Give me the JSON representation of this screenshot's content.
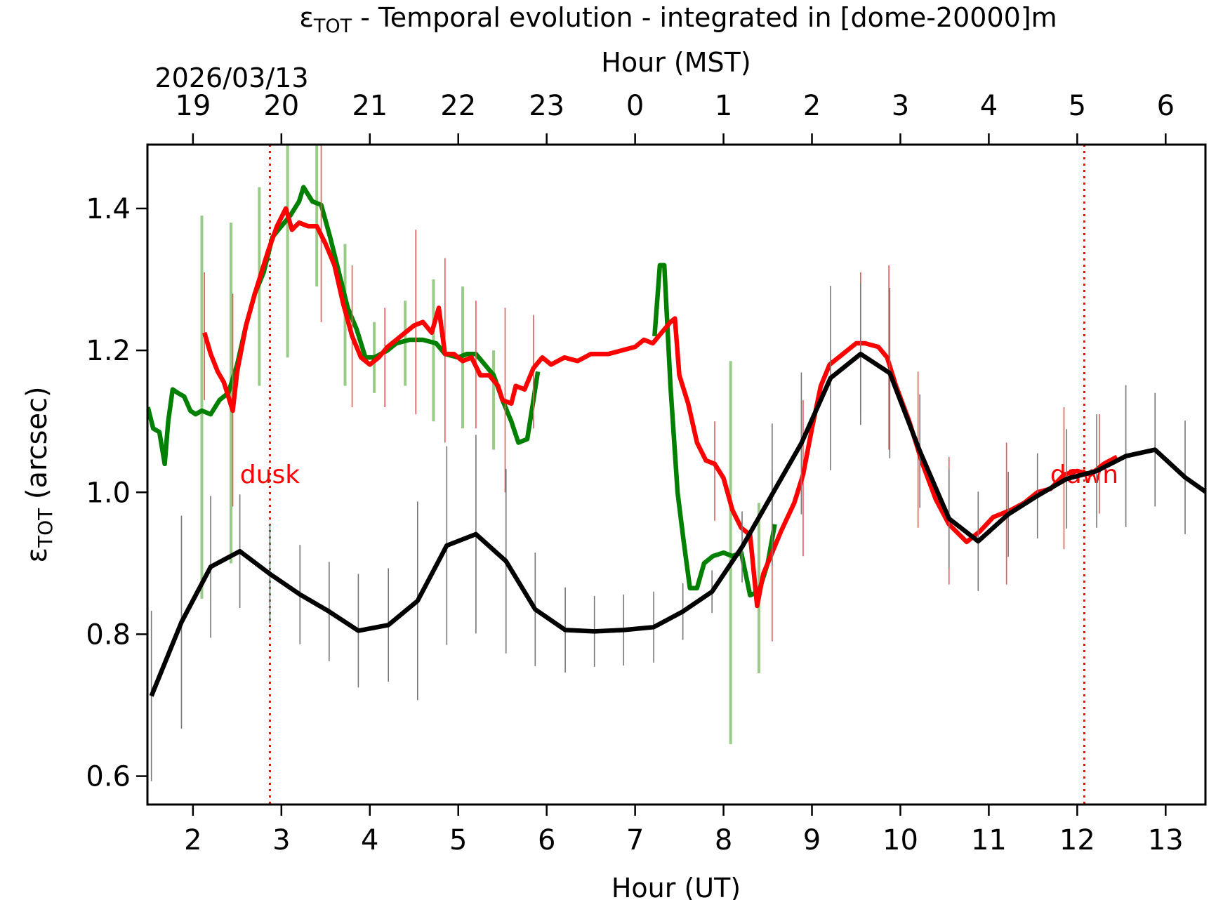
{
  "chart_data": {
    "type": "line",
    "title": {
      "symbol": "ε",
      "subscript": "TOT",
      "text": " - Temporal evolution - integrated in [dome-20000]m"
    },
    "ylabel": {
      "symbol": "ε",
      "subscript": "TOT",
      "text": " (arcsec)"
    },
    "xlabel": "Hour (UT)",
    "x2label": "Hour (MST)",
    "date_label": "2026/03/13",
    "xlim": [
      1.485,
      13.45
    ],
    "ylim": [
      0.56,
      1.49
    ],
    "xticks": [
      2,
      3,
      4,
      5,
      6,
      7,
      8,
      9,
      10,
      11,
      12,
      13
    ],
    "x2ticks": [
      {
        "value": 2,
        "label": "19"
      },
      {
        "value": 3,
        "label": "20"
      },
      {
        "value": 4,
        "label": "21"
      },
      {
        "value": 5,
        "label": "22"
      },
      {
        "value": 6,
        "label": "23"
      },
      {
        "value": 7,
        "label": "0"
      },
      {
        "value": 8,
        "label": "1"
      },
      {
        "value": 9,
        "label": "2"
      },
      {
        "value": 10,
        "label": "3"
      },
      {
        "value": 11,
        "label": "4"
      },
      {
        "value": 12,
        "label": "5"
      },
      {
        "value": 13,
        "label": "6"
      }
    ],
    "yticks": [
      0.6,
      0.8,
      {
        "value": 1,
        "label": "1.0"
      },
      1.2,
      1.4
    ],
    "annotations": [
      {
        "text": "dusk",
        "x": 2.87,
        "y": 1.025,
        "color": "#ff0000"
      },
      {
        "text": "dawn",
        "x": 12.08,
        "y": 1.025,
        "color": "#ff0000"
      }
    ],
    "series": [
      {
        "color": "#008000",
        "error_color": "#99cc88",
        "x": [
          1.49,
          1.55,
          1.62,
          1.68,
          1.72,
          1.77,
          1.83,
          1.9,
          1.97,
          2.03,
          2.1,
          2.2,
          2.3,
          2.4,
          2.5,
          2.6,
          2.7,
          2.8,
          2.9,
          3.0,
          3.1,
          3.2,
          3.25,
          3.35,
          3.45,
          3.55,
          3.65,
          3.75,
          3.85,
          3.95,
          4.05,
          4.2,
          4.3,
          4.45,
          4.6,
          4.75,
          4.85,
          5.0,
          5.1,
          5.2,
          5.3,
          5.4,
          5.5,
          5.6,
          5.68,
          5.78,
          5.85,
          5.9,
          null,
          7.22,
          7.28,
          7.33,
          7.4,
          7.48,
          7.55,
          7.62,
          7.7,
          7.78,
          7.88,
          8.0,
          8.1,
          8.2,
          8.3,
          8.4,
          8.5,
          8.58
        ],
        "values": [
          1.12,
          1.09,
          1.085,
          1.04,
          1.1,
          1.145,
          1.14,
          1.135,
          1.115,
          1.11,
          1.115,
          1.11,
          1.13,
          1.14,
          1.18,
          1.235,
          1.28,
          1.31,
          1.36,
          1.375,
          1.39,
          1.41,
          1.43,
          1.41,
          1.405,
          1.36,
          1.31,
          1.26,
          1.23,
          1.19,
          1.19,
          1.2,
          1.21,
          1.215,
          1.215,
          1.21,
          1.195,
          1.19,
          1.195,
          1.195,
          1.18,
          1.165,
          1.13,
          1.1,
          1.07,
          1.075,
          1.13,
          1.17,
          null,
          1.22,
          1.32,
          1.32,
          1.15,
          1.0,
          0.93,
          0.865,
          0.865,
          0.9,
          0.91,
          0.915,
          0.91,
          0.915,
          0.855,
          0.86,
          0.9,
          0.955
        ],
        "error_bars": {
          "x": [
            2.1,
            2.43,
            2.75,
            3.07,
            3.4,
            3.72,
            4.05,
            4.4,
            4.72,
            5.05,
            5.4,
            8.08,
            8.4
          ],
          "values": [
            1.12,
            1.14,
            1.29,
            1.39,
            1.41,
            1.25,
            1.19,
            1.21,
            1.2,
            1.19,
            1.13,
            0.915,
            0.865
          ],
          "errors": [
            0.27,
            0.24,
            0.14,
            0.2,
            0.12,
            0.1,
            0.05,
            0.06,
            0.1,
            0.1,
            0.07,
            0.27,
            0.12
          ]
        }
      },
      {
        "color": "#ff0000",
        "error_color": "#ee5555",
        "x": [
          2.13,
          2.2,
          2.28,
          2.35,
          2.45,
          2.5,
          2.6,
          2.7,
          2.85,
          2.95,
          3.05,
          3.12,
          3.2,
          3.3,
          3.4,
          3.5,
          3.6,
          3.7,
          3.8,
          3.9,
          4.0,
          4.1,
          4.2,
          4.3,
          4.4,
          4.5,
          4.6,
          4.7,
          4.78,
          4.85,
          4.95,
          5.05,
          5.15,
          5.25,
          5.35,
          5.45,
          5.5,
          5.6,
          5.65,
          5.75,
          5.85,
          5.95,
          6.05,
          6.2,
          6.35,
          6.5,
          6.7,
          6.85,
          7.0,
          7.1,
          7.2,
          7.3,
          7.4,
          7.45,
          7.5,
          7.6,
          7.7,
          7.8,
          7.9,
          8.0,
          8.1,
          8.2,
          8.3,
          8.38,
          8.45,
          8.55,
          8.65,
          8.8,
          8.9,
          9.0,
          9.1,
          9.2,
          9.35,
          9.5,
          9.6,
          9.75,
          9.85,
          9.95,
          10.1,
          10.25,
          10.4,
          10.55,
          10.75,
          10.9,
          11.05,
          11.25,
          11.4,
          11.55,
          11.7,
          11.85,
          12.0,
          12.15,
          12.3,
          12.45
        ],
        "values": [
          1.225,
          1.195,
          1.17,
          1.155,
          1.115,
          1.17,
          1.235,
          1.28,
          1.34,
          1.375,
          1.4,
          1.37,
          1.38,
          1.375,
          1.375,
          1.35,
          1.32,
          1.265,
          1.22,
          1.19,
          1.18,
          1.19,
          1.205,
          1.215,
          1.225,
          1.235,
          1.24,
          1.225,
          1.26,
          1.195,
          1.195,
          1.185,
          1.19,
          1.165,
          1.165,
          1.15,
          1.13,
          1.125,
          1.15,
          1.145,
          1.175,
          1.19,
          1.18,
          1.19,
          1.185,
          1.195,
          1.195,
          1.2,
          1.205,
          1.215,
          1.21,
          1.225,
          1.24,
          1.245,
          1.165,
          1.125,
          1.07,
          1.045,
          1.04,
          1.02,
          0.975,
          0.95,
          0.94,
          0.84,
          0.885,
          0.915,
          0.945,
          0.985,
          1.025,
          1.09,
          1.15,
          1.18,
          1.195,
          1.21,
          1.21,
          1.205,
          1.19,
          1.15,
          1.1,
          1.04,
          0.99,
          0.955,
          0.93,
          0.945,
          0.965,
          0.975,
          0.985,
          1.0,
          1.005,
          1.025,
          1.03,
          1.025,
          1.04,
          1.05
        ],
        "error_bars": {
          "x": [
            2.13,
            2.45,
            3.45,
            3.8,
            4.17,
            4.52,
            4.85,
            5.2,
            5.53,
            5.85,
            7.9,
            8.55,
            8.9,
            9.55,
            9.87,
            10.2,
            10.55,
            11.2,
            11.85,
            12.25
          ],
          "values": [
            1.22,
            1.13,
            1.37,
            1.22,
            1.19,
            1.24,
            1.2,
            1.18,
            1.13,
            1.17,
            1.03,
            0.91,
            1.02,
            1.21,
            1.19,
            1.06,
            0.96,
            0.97,
            1.02,
            1.04
          ],
          "errors": [
            0.09,
            0.15,
            0.13,
            0.1,
            0.07,
            0.13,
            0.13,
            0.09,
            0.13,
            0.08,
            0.07,
            0.12,
            0.11,
            0.1,
            0.13,
            0.11,
            0.09,
            0.1,
            0.1,
            0.07
          ]
        }
      },
      {
        "color": "#000000",
        "error_color": "#777777",
        "x": [
          1.53,
          1.87,
          2.2,
          2.53,
          2.87,
          3.21,
          3.54,
          3.87,
          4.21,
          4.54,
          4.87,
          5.2,
          5.54,
          5.87,
          6.21,
          6.54,
          6.87,
          7.21,
          7.54,
          7.87,
          8.21,
          8.55,
          8.88,
          9.21,
          9.55,
          9.88,
          10.22,
          10.55,
          10.88,
          11.22,
          11.55,
          11.88,
          12.22,
          12.55,
          12.88,
          13.22,
          13.46
        ],
        "values": [
          0.713,
          0.817,
          0.895,
          0.917,
          0.885,
          0.856,
          0.832,
          0.805,
          0.813,
          0.847,
          0.925,
          0.941,
          0.903,
          0.835,
          0.806,
          0.804,
          0.806,
          0.81,
          0.832,
          0.86,
          0.923,
          0.997,
          1.069,
          1.161,
          1.195,
          1.168,
          1.058,
          0.963,
          0.931,
          0.969,
          0.995,
          1.019,
          1.03,
          1.051,
          1.06,
          1.021,
          1.0
        ],
        "errors": [
          0.12,
          0.15,
          0.1,
          0.08,
          0.07,
          0.07,
          0.07,
          0.08,
          0.08,
          0.14,
          0.14,
          0.14,
          0.13,
          0.08,
          0.06,
          0.05,
          0.05,
          0.05,
          0.04,
          0.03,
          0.05,
          0.1,
          0.1,
          0.13,
          0.1,
          0.12,
          0.08,
          0.07,
          0.07,
          0.06,
          0.06,
          0.07,
          0.08,
          0.1,
          0.08,
          0.08,
          0.02
        ]
      }
    ]
  }
}
